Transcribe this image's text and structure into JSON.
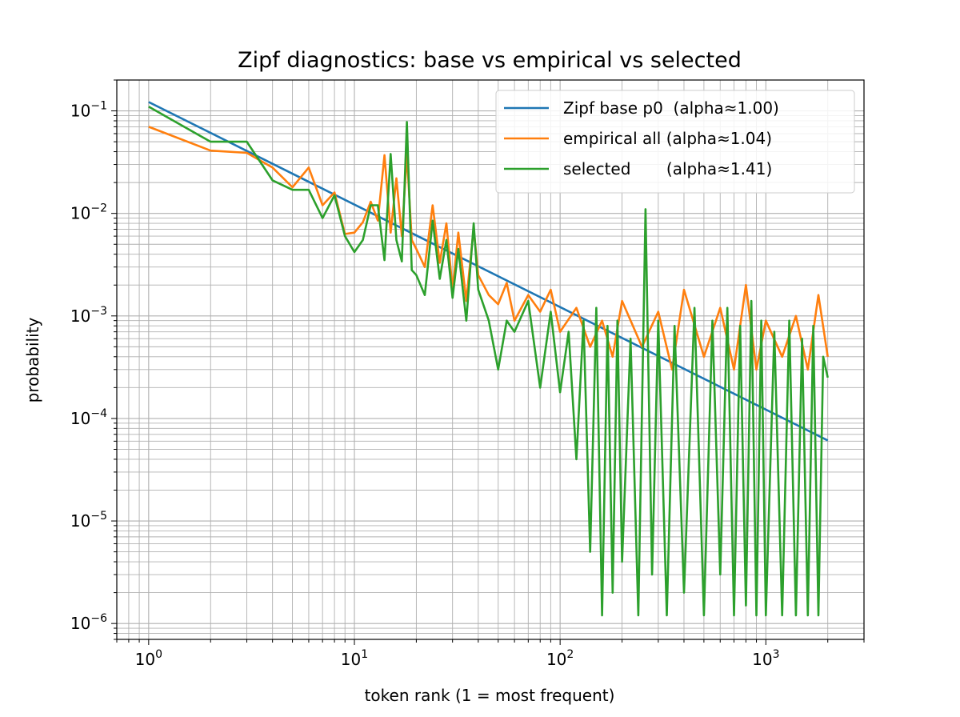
{
  "chart_data": {
    "type": "line",
    "title": "Zipf diagnostics: base vs empirical vs selected",
    "xlabel": "token rank (1 = most frequent)",
    "ylabel": "probability",
    "xscale": "log",
    "yscale": "log",
    "xlim": [
      0.7,
      3000
    ],
    "ylim": [
      7e-07,
      0.2
    ],
    "grid": "major and minor",
    "legend_position": "top-right",
    "x_ticks": [
      {
        "value": 1,
        "base": "10",
        "exp": "0"
      },
      {
        "value": 10,
        "base": "10",
        "exp": "1"
      },
      {
        "value": 100,
        "base": "10",
        "exp": "2"
      },
      {
        "value": 1000,
        "base": "10",
        "exp": "3"
      }
    ],
    "y_ticks": [
      {
        "value": 0.1,
        "base": "10",
        "exp": "−1"
      },
      {
        "value": 0.01,
        "base": "10",
        "exp": "−2"
      },
      {
        "value": 0.001,
        "base": "10",
        "exp": "−3"
      },
      {
        "value": 0.0001,
        "base": "10",
        "exp": "−4"
      },
      {
        "value": 1e-05,
        "base": "10",
        "exp": "−5"
      },
      {
        "value": 1e-06,
        "base": "10",
        "exp": "−6"
      }
    ],
    "series": [
      {
        "name": "Zipf base p0  (alpha≈1.00)",
        "color": "#1f77b4",
        "x": [
          1,
          2000
        ],
        "y": [
          0.122,
          6.1e-05
        ]
      },
      {
        "name": "empirical all (alpha≈1.04)",
        "color": "#ff7f0e",
        "x": [
          1,
          2,
          3,
          4,
          5,
          6,
          7,
          8,
          9,
          10,
          11,
          12,
          13,
          14,
          15,
          16,
          17,
          18,
          19,
          20,
          22,
          24,
          26,
          28,
          30,
          32,
          35,
          38,
          40,
          45,
          50,
          55,
          60,
          70,
          80,
          90,
          100,
          120,
          140,
          160,
          180,
          200,
          250,
          300,
          350,
          400,
          500,
          600,
          700,
          800,
          900,
          1000,
          1200,
          1400,
          1600,
          1800,
          2000
        ],
        "y": [
          0.07,
          0.041,
          0.039,
          0.028,
          0.018,
          0.028,
          0.012,
          0.016,
          0.0063,
          0.0065,
          0.0082,
          0.013,
          0.0085,
          0.037,
          0.0065,
          0.022,
          0.006,
          0.038,
          0.0055,
          0.0045,
          0.003,
          0.012,
          0.0033,
          0.008,
          0.0018,
          0.0065,
          0.0014,
          0.0072,
          0.0025,
          0.0016,
          0.0013,
          0.0021,
          0.0009,
          0.0016,
          0.0011,
          0.0018,
          0.0007,
          0.0012,
          0.0005,
          0.0009,
          0.0004,
          0.0014,
          0.0005,
          0.0011,
          0.0003,
          0.0018,
          0.0004,
          0.0012,
          0.0003,
          0.002,
          0.0003,
          0.0009,
          0.0004,
          0.001,
          0.0003,
          0.0016,
          0.0004
        ]
      },
      {
        "name": "selected       (alpha≈1.41)",
        "color": "#2ca02c",
        "x": [
          1,
          2,
          3,
          4,
          5,
          6,
          7,
          8,
          9,
          10,
          11,
          12,
          13,
          14,
          15,
          16,
          17,
          18,
          19,
          20,
          22,
          24,
          26,
          28,
          30,
          32,
          35,
          38,
          40,
          45,
          50,
          55,
          60,
          70,
          80,
          90,
          100,
          110,
          120,
          130,
          140,
          150,
          160,
          170,
          180,
          190,
          200,
          220,
          240,
          260,
          280,
          300,
          330,
          360,
          400,
          450,
          500,
          550,
          600,
          650,
          700,
          750,
          800,
          850,
          900,
          950,
          1000,
          1100,
          1200,
          1300,
          1400,
          1500,
          1600,
          1700,
          1800,
          1900,
          2000
        ],
        "y": [
          0.11,
          0.05,
          0.05,
          0.021,
          0.017,
          0.017,
          0.009,
          0.015,
          0.006,
          0.0042,
          0.0055,
          0.012,
          0.012,
          0.0035,
          0.038,
          0.0055,
          0.0034,
          0.078,
          0.0028,
          0.0025,
          0.0016,
          0.0085,
          0.0023,
          0.0055,
          0.0015,
          0.0045,
          0.0009,
          0.008,
          0.0018,
          0.0009,
          0.0003,
          0.0009,
          0.0007,
          0.0014,
          0.0002,
          0.0011,
          0.00018,
          0.0007,
          4e-05,
          0.0009,
          5e-06,
          0.0012,
          1.2e-06,
          0.0008,
          2e-06,
          0.0009,
          4e-06,
          0.0006,
          1.2e-06,
          0.011,
          3e-06,
          0.0009,
          1.2e-06,
          0.0008,
          2e-06,
          0.0012,
          1.2e-06,
          0.0009,
          3e-06,
          0.0012,
          1.2e-06,
          0.0008,
          1.5e-06,
          0.0014,
          1.2e-06,
          0.0009,
          1.2e-06,
          0.0007,
          1.2e-06,
          0.0009,
          1.2e-06,
          0.0006,
          1.2e-06,
          0.0008,
          1.2e-06,
          0.0004,
          0.00025
        ]
      }
    ]
  }
}
